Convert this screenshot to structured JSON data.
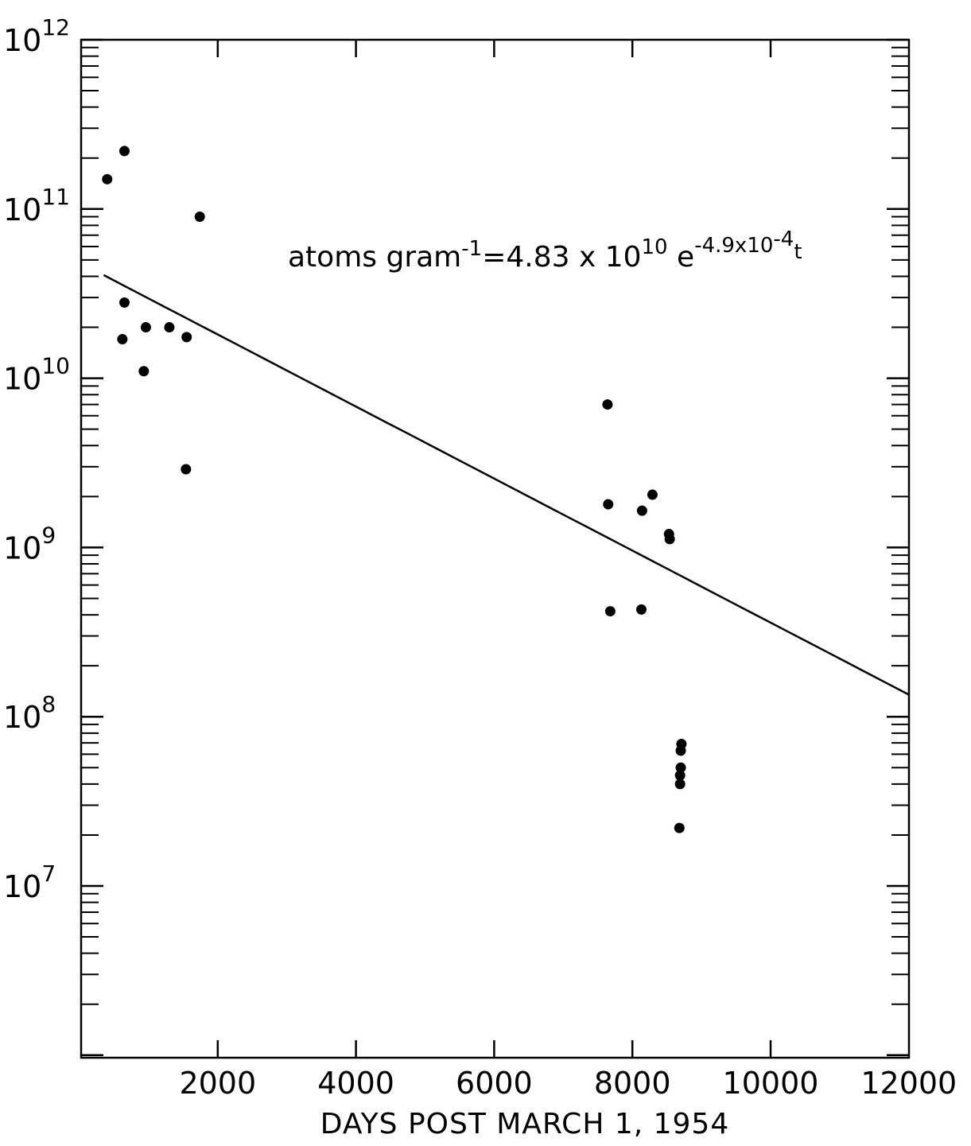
{
  "chart_data": {
    "type": "scatter",
    "title": "",
    "xlabel": "DAYS POST MARCH 1, 1954",
    "ylabel": "",
    "xlim": [
      0,
      12000
    ],
    "ylim": [
      1000000,
      1000000000000
    ],
    "yscale": "log",
    "grid": false,
    "x_ticks": [
      {
        "value": 2000,
        "label": "2000"
      },
      {
        "value": 4000,
        "label": "4000"
      },
      {
        "value": 6000,
        "label": "6000"
      },
      {
        "value": 8000,
        "label": "8000"
      },
      {
        "value": 10000,
        "label": "10000"
      },
      {
        "value": 12000,
        "label": "12000"
      }
    ],
    "y_ticks": [
      {
        "exp": 7,
        "base": "10",
        "power": "7"
      },
      {
        "exp": 8,
        "base": "10",
        "power": "8"
      },
      {
        "exp": 9,
        "base": "10",
        "power": "9"
      },
      {
        "exp": 10,
        "base": "10",
        "power": "10"
      },
      {
        "exp": 11,
        "base": "10",
        "power": "11"
      },
      {
        "exp": 12,
        "base": "10",
        "power": "12"
      }
    ],
    "series": [
      {
        "kind": "points",
        "x": [
          400,
          650,
          650,
          620,
          930,
          960,
          1300,
          1550,
          1540,
          1740,
          7640,
          7650,
          7680,
          8130,
          8140,
          8290,
          8530,
          8540,
          8680,
          8690,
          8690,
          8700,
          8700,
          8710
        ],
        "y": [
          150000000000,
          220000000000,
          28000000000,
          17000000000,
          11000000000,
          20000000000,
          20000000000,
          17500000000,
          2900000000,
          90000000000,
          7000000000,
          1800000000,
          420000000,
          430000000,
          1650000000,
          2050000000,
          1200000000,
          1120000000,
          22000000,
          40000000,
          45000000,
          50000000,
          63000000,
          69000000
        ]
      },
      {
        "kind": "fit-line",
        "equation": {
          "lhs_base": "atoms gram",
          "lhs_sup": "-1",
          "rhs_base": "=4.83 x 10",
          "rhs_sup1": "10",
          "rhs_e": " e",
          "rhs_sup2": "-4.9x10",
          "rhs_sup3": "-4",
          "rhs_t": "t"
        },
        "a": 48300000000,
        "k": 0.00049,
        "x_range": [
          350,
          12000
        ]
      }
    ]
  }
}
